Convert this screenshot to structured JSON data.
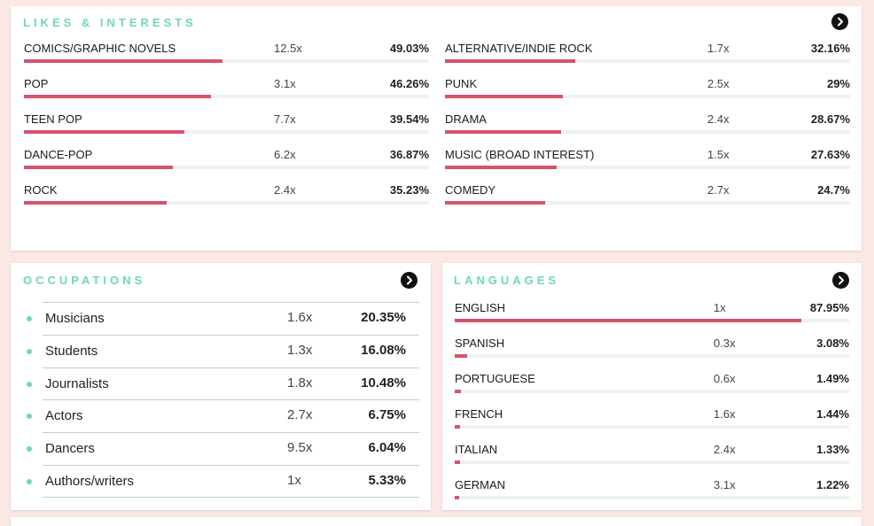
{
  "likes": {
    "title": "LIKES & INTERESTS",
    "left": [
      {
        "name": "COMICS/GRAPHIC NOVELS",
        "mult": "12.5x",
        "pct": "49.03%",
        "value": 49.03
      },
      {
        "name": "POP",
        "mult": "3.1x",
        "pct": "46.26%",
        "value": 46.26
      },
      {
        "name": "TEEN POP",
        "mult": "7.7x",
        "pct": "39.54%",
        "value": 39.54
      },
      {
        "name": "DANCE-POP",
        "mult": "6.2x",
        "pct": "36.87%",
        "value": 36.87
      },
      {
        "name": "ROCK",
        "mult": "2.4x",
        "pct": "35.23%",
        "value": 35.23
      }
    ],
    "right": [
      {
        "name": "ALTERNATIVE/INDIE ROCK",
        "mult": "1.7x",
        "pct": "32.16%",
        "value": 32.16
      },
      {
        "name": "PUNK",
        "mult": "2.5x",
        "pct": "29%",
        "value": 29
      },
      {
        "name": "DRAMA",
        "mult": "2.4x",
        "pct": "28.67%",
        "value": 28.67
      },
      {
        "name": "MUSIC (BROAD INTEREST)",
        "mult": "1.5x",
        "pct": "27.63%",
        "value": 27.63
      },
      {
        "name": "COMEDY",
        "mult": "2.7x",
        "pct": "24.7%",
        "value": 24.7
      }
    ]
  },
  "occupations": {
    "title": "OCCUPATIONS",
    "items": [
      {
        "name": "Musicians",
        "mult": "1.6x",
        "pct": "20.35%"
      },
      {
        "name": "Students",
        "mult": "1.3x",
        "pct": "16.08%"
      },
      {
        "name": "Journalists",
        "mult": "1.8x",
        "pct": "10.48%"
      },
      {
        "name": "Actors",
        "mult": "2.7x",
        "pct": "6.75%"
      },
      {
        "name": "Dancers",
        "mult": "9.5x",
        "pct": "6.04%"
      },
      {
        "name": "Authors/writers",
        "mult": "1x",
        "pct": "5.33%"
      }
    ]
  },
  "languages": {
    "title": "LANGUAGES",
    "items": [
      {
        "name": "ENGLISH",
        "mult": "1x",
        "pct": "87.95%",
        "value": 87.95
      },
      {
        "name": "SPANISH",
        "mult": "0.3x",
        "pct": "3.08%",
        "value": 3.08
      },
      {
        "name": "PORTUGUESE",
        "mult": "0.6x",
        "pct": "1.49%",
        "value": 1.49
      },
      {
        "name": "FRENCH",
        "mult": "1.6x",
        "pct": "1.44%",
        "value": 1.44
      },
      {
        "name": "ITALIAN",
        "mult": "2.4x",
        "pct": "1.33%",
        "value": 1.33
      },
      {
        "name": "GERMAN",
        "mult": "3.1x",
        "pct": "1.22%",
        "value": 1.22
      }
    ]
  },
  "colors": {
    "accent": "#6fd6bf",
    "bar": "#d6536c",
    "track": "#eef0f1",
    "background": "#fce9e6"
  },
  "icons": {
    "more": "chevron-right-icon"
  }
}
